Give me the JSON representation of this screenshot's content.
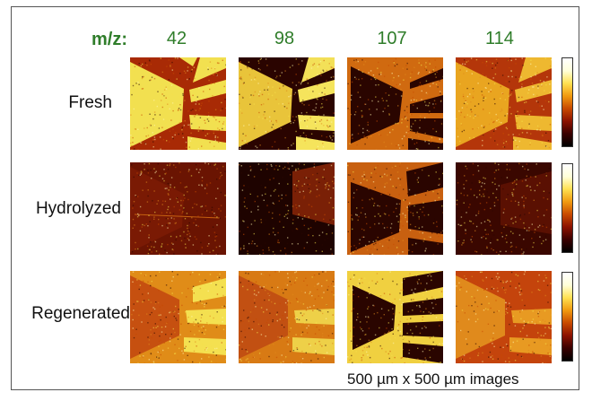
{
  "mz_prefix": "m/z:",
  "mz_values": [
    "42",
    "98",
    "107",
    "114"
  ],
  "rows": [
    "Fresh",
    "Hydrolyzed",
    "Regenerated"
  ],
  "caption": "500 µm x 500 µm images",
  "colormap": [
    "#000000",
    "#3a0000",
    "#8c1200",
    "#c84a00",
    "#f09a10",
    "#ffe050",
    "#ffffd8",
    "#ffffff"
  ],
  "colors": {
    "label_green": "#2f7d2a",
    "dark_bg": "#3a0a02",
    "mid_bg": "#a32a05",
    "bright": "#f6e24a"
  }
}
